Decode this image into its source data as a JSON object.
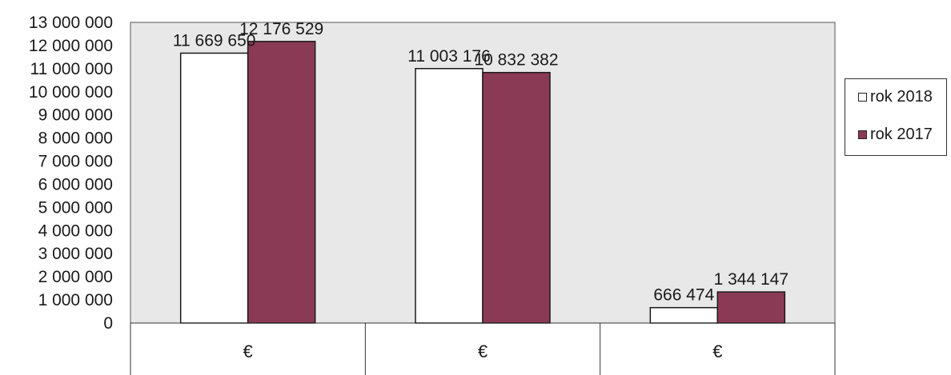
{
  "chart_data": {
    "type": "bar",
    "categories": [
      "€",
      "€",
      "€"
    ],
    "series": [
      {
        "name": "rok 2018",
        "values": [
          11669650,
          11003176,
          666474
        ],
        "labels": [
          "11 669 650",
          "11 003 176",
          "666 474"
        ],
        "color": "#ffffff"
      },
      {
        "name": "rok 2017",
        "values": [
          12176529,
          10832382,
          1344147
        ],
        "labels": [
          "12 176 529",
          "10 832 382",
          "1 344 147"
        ],
        "color": "#8b3a55"
      }
    ],
    "ylim": [
      0,
      13000000
    ],
    "yticks": [
      "0",
      "1 000 000",
      "2 000 000",
      "3 000 000",
      "4 000 000",
      "5 000 000",
      "6 000 000",
      "7 000 000",
      "8 000 000",
      "9 000 000",
      "10 000 000",
      "11 000 000",
      "12 000 000",
      "13 000 000"
    ],
    "grid": false,
    "legend_position": "right",
    "plot_background": "#e8e8e8"
  }
}
